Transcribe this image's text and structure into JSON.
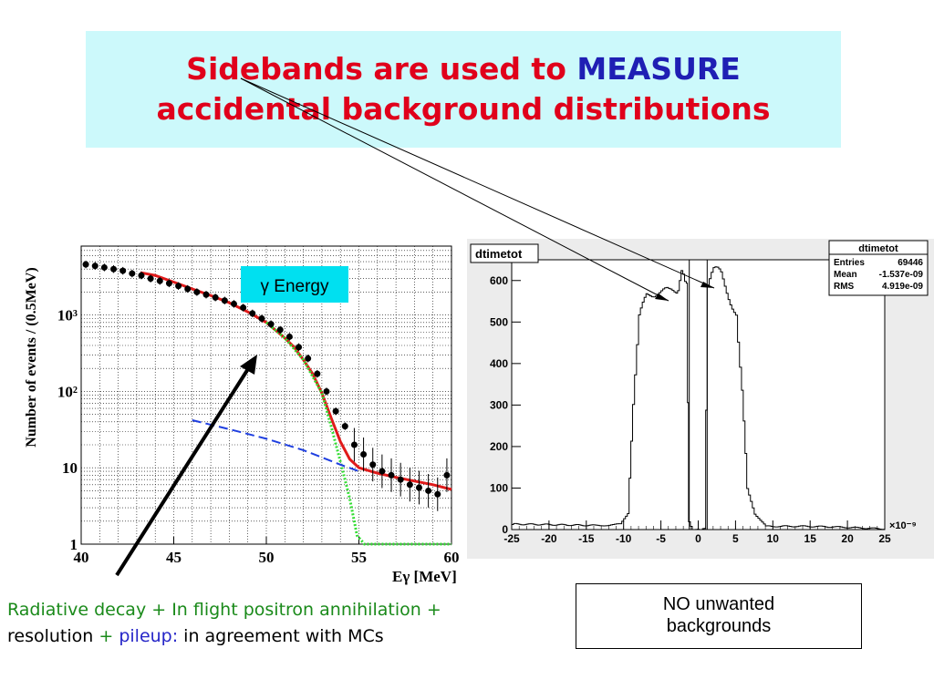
{
  "title": {
    "line1_prefix": "Sidebands are used to ",
    "line1_accent": "MEASURE",
    "line2": "accidental background distributions"
  },
  "caption": {
    "part1": "Radiative decay + In flight positron annihilation +",
    "part2": "resolution",
    "part3": " + ",
    "part4": "pileup:",
    "part5": " in agreement with MCs"
  },
  "note": {
    "line1": "NO unwanted",
    "line2": "backgrounds"
  },
  "colors": {
    "title": "#e0001b",
    "accent": "#1f1fb4",
    "fit": "#e01a1a",
    "signal": "#33dd33",
    "background": "#1f3fe0",
    "label_box": "#00e0f0"
  },
  "chart_data": [
    {
      "type": "scatter",
      "title": "",
      "label_box": "γ Energy",
      "xlabel": "Eγ [MeV]",
      "ylabel": "Number of events / (0.5MeV)",
      "xlim": [
        40,
        60
      ],
      "ylim": [
        1,
        8000
      ],
      "y_scale": "log",
      "grid": true,
      "x_ticks": [
        40,
        45,
        50,
        55,
        60
      ],
      "y_ticks": [
        {
          "value": 1,
          "label": "1"
        },
        {
          "value": 10,
          "label": "10"
        },
        {
          "value": 100,
          "label": "10²"
        },
        {
          "value": 1000,
          "label": "10³"
        }
      ],
      "series": [
        {
          "kind": "points",
          "points": [
            {
              "x": 40.25,
              "y": 4600
            },
            {
              "x": 40.75,
              "y": 4400
            },
            {
              "x": 41.25,
              "y": 4200
            },
            {
              "x": 41.75,
              "y": 4000
            },
            {
              "x": 42.25,
              "y": 3800
            },
            {
              "x": 42.75,
              "y": 3500
            },
            {
              "x": 43.25,
              "y": 3300
            },
            {
              "x": 43.75,
              "y": 3000
            },
            {
              "x": 44.25,
              "y": 2800
            },
            {
              "x": 44.75,
              "y": 2600
            },
            {
              "x": 45.25,
              "y": 2400
            },
            {
              "x": 45.75,
              "y": 2200
            },
            {
              "x": 46.25,
              "y": 2000
            },
            {
              "x": 46.75,
              "y": 1850
            },
            {
              "x": 47.25,
              "y": 1700
            },
            {
              "x": 47.75,
              "y": 1550
            },
            {
              "x": 48.25,
              "y": 1400
            },
            {
              "x": 48.75,
              "y": 1250
            },
            {
              "x": 49.25,
              "y": 1050
            },
            {
              "x": 49.75,
              "y": 900
            },
            {
              "x": 50.25,
              "y": 760
            },
            {
              "x": 50.75,
              "y": 640
            },
            {
              "x": 51.25,
              "y": 520
            },
            {
              "x": 51.75,
              "y": 380
            },
            {
              "x": 52.25,
              "y": 270
            },
            {
              "x": 52.75,
              "y": 170
            },
            {
              "x": 53.25,
              "y": 100
            },
            {
              "x": 53.75,
              "y": 55
            },
            {
              "x": 54.25,
              "y": 35
            },
            {
              "x": 54.75,
              "y": 20
            },
            {
              "x": 55.25,
              "y": 15
            },
            {
              "x": 55.75,
              "y": 11
            },
            {
              "x": 56.25,
              "y": 9
            },
            {
              "x": 56.75,
              "y": 8
            },
            {
              "x": 57.25,
              "y": 7
            },
            {
              "x": 57.75,
              "y": 6
            },
            {
              "x": 58.25,
              "y": 5.5
            },
            {
              "x": 58.75,
              "y": 5
            },
            {
              "x": 59.25,
              "y": 4.5
            },
            {
              "x": 59.75,
              "y": 8
            }
          ]
        },
        {
          "kind": "fit",
          "points": [
            {
              "x": 43.2,
              "y": 3600
            },
            {
              "x": 44,
              "y": 3300
            },
            {
              "x": 45,
              "y": 2700
            },
            {
              "x": 46,
              "y": 2200
            },
            {
              "x": 47,
              "y": 1800
            },
            {
              "x": 48,
              "y": 1450
            },
            {
              "x": 49,
              "y": 1100
            },
            {
              "x": 50,
              "y": 800
            },
            {
              "x": 51,
              "y": 500
            },
            {
              "x": 51.5,
              "y": 380
            },
            {
              "x": 52,
              "y": 260
            },
            {
              "x": 52.5,
              "y": 170
            },
            {
              "x": 53,
              "y": 95
            },
            {
              "x": 53.5,
              "y": 45
            },
            {
              "x": 54,
              "y": 22
            },
            {
              "x": 54.5,
              "y": 13
            },
            {
              "x": 55,
              "y": 10
            },
            {
              "x": 56,
              "y": 8.5
            },
            {
              "x": 57,
              "y": 7.5
            },
            {
              "x": 58,
              "y": 6.7
            },
            {
              "x": 59,
              "y": 6
            },
            {
              "x": 60,
              "y": 5.2
            }
          ]
        },
        {
          "kind": "signal",
          "points": [
            {
              "x": 50,
              "y": 800
            },
            {
              "x": 51,
              "y": 500
            },
            {
              "x": 52,
              "y": 260
            },
            {
              "x": 53,
              "y": 95
            },
            {
              "x": 53.5,
              "y": 35
            },
            {
              "x": 54,
              "y": 12
            },
            {
              "x": 54.5,
              "y": 4
            },
            {
              "x": 54.9,
              "y": 1.3
            },
            {
              "x": 55.3,
              "y": 1
            },
            {
              "x": 60,
              "y": 1
            }
          ]
        },
        {
          "kind": "background",
          "points": [
            {
              "x": 46,
              "y": 42
            },
            {
              "x": 48,
              "y": 32
            },
            {
              "x": 50,
              "y": 24
            },
            {
              "x": 52,
              "y": 17
            },
            {
              "x": 54,
              "y": 11
            },
            {
              "x": 55,
              "y": 9
            }
          ]
        }
      ]
    },
    {
      "type": "line",
      "title": "dtimetot",
      "stats": [
        {
          "label": "Entries",
          "value": "69446"
        },
        {
          "label": "Mean",
          "value": "-1.537e-09"
        },
        {
          "label": "RMS",
          "value": "4.919e-09"
        }
      ],
      "x_multiplier": "×10⁻⁹",
      "xlim": [
        -25,
        25
      ],
      "ylim": [
        0,
        650
      ],
      "x_ticks": [
        -25,
        -20,
        -15,
        -10,
        -5,
        0,
        5,
        10,
        15,
        20,
        25
      ],
      "y_ticks": [
        0,
        100,
        200,
        300,
        400,
        500,
        600
      ],
      "window_lines_x": [
        -1.2,
        1.2
      ],
      "series": [
        {
          "points": [
            {
              "x": -25,
              "y": 12
            },
            {
              "x": -14,
              "y": 10
            },
            {
              "x": -10.5,
              "y": 14
            },
            {
              "x": -9.5,
              "y": 40
            },
            {
              "x": -8.8,
              "y": 300
            },
            {
              "x": -8,
              "y": 500
            },
            {
              "x": -7,
              "y": 550
            },
            {
              "x": -5.5,
              "y": 570
            },
            {
              "x": -4,
              "y": 575
            },
            {
              "x": -3,
              "y": 590
            },
            {
              "x": -2.3,
              "y": 615
            },
            {
              "x": -1.6,
              "y": 600
            },
            {
              "x": -1.3,
              "y": 20
            },
            {
              "x": -0.8,
              "y": 0
            },
            {
              "x": 0.8,
              "y": 0
            },
            {
              "x": 1.2,
              "y": 580
            },
            {
              "x": 2,
              "y": 610
            },
            {
              "x": 3,
              "y": 600
            },
            {
              "x": 4,
              "y": 560
            },
            {
              "x": 5,
              "y": 520
            },
            {
              "x": 5.8,
              "y": 350
            },
            {
              "x": 6.5,
              "y": 100
            },
            {
              "x": 7.5,
              "y": 40
            },
            {
              "x": 9,
              "y": 8
            },
            {
              "x": 25,
              "y": 3
            }
          ]
        }
      ]
    }
  ]
}
